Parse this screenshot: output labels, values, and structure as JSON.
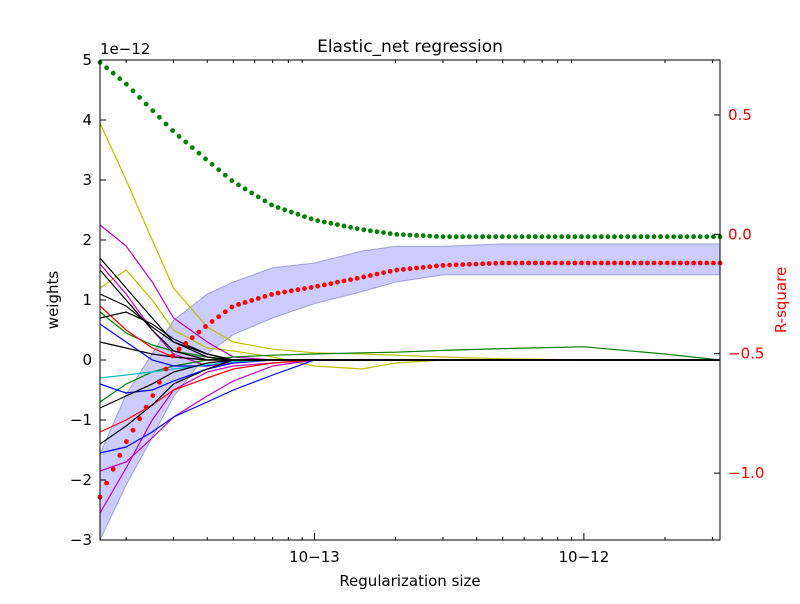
{
  "chart_data": {
    "type": "line",
    "title": "Elastic_net regression",
    "xlabel": "Regularization size",
    "ylabel": "weights",
    "y2label": "R-square",
    "y_offset_label": "1e−12",
    "x_scale": "log",
    "xlim": [
      1.6e-14,
      3.2e-12
    ],
    "ylim": [
      -3,
      5
    ],
    "y2lim": [
      -1.28,
      0.73
    ],
    "x_ticks": [
      {
        "value": 1e-13,
        "label": "10−13"
      },
      {
        "value": 1e-12,
        "label": "10−12"
      }
    ],
    "y_ticks": [
      {
        "value": 5,
        "label": "5"
      },
      {
        "value": 4,
        "label": "4"
      },
      {
        "value": 3,
        "label": "3"
      },
      {
        "value": 2,
        "label": "2"
      },
      {
        "value": 1,
        "label": "1"
      },
      {
        "value": 0,
        "label": "0"
      },
      {
        "value": -1,
        "label": "−1"
      },
      {
        "value": -2,
        "label": "−2"
      },
      {
        "value": -3,
        "label": "−3"
      }
    ],
    "y2_ticks": [
      {
        "value": 0.5,
        "label": "0.5"
      },
      {
        "value": 0.0,
        "label": "0.0"
      },
      {
        "value": -0.5,
        "label": "−0.5"
      },
      {
        "value": -1.0,
        "label": "−1.0"
      }
    ],
    "grid": false,
    "right_axis_color": "#ff0000",
    "band": {
      "color": "#8080ff",
      "opacity": 0.4,
      "x": [
        1.6e-14,
        2e-14,
        2.5e-14,
        3e-14,
        4e-14,
        5e-14,
        7e-14,
        1e-13,
        1.5e-13,
        2e-13,
        3e-13,
        5e-13,
        1e-12,
        2e-12,
        3.2e-12
      ],
      "y_upper": [
        -0.92,
        -0.67,
        -0.5,
        -0.36,
        -0.25,
        -0.2,
        -0.14,
        -0.12,
        -0.07,
        -0.05,
        -0.05,
        -0.04,
        -0.04,
        -0.04,
        -0.04
      ],
      "y_lower": [
        -1.28,
        -1.05,
        -0.85,
        -0.68,
        -0.5,
        -0.42,
        -0.35,
        -0.29,
        -0.24,
        -0.2,
        -0.17,
        -0.17,
        -0.17,
        -0.17,
        -0.17
      ]
    },
    "series": [
      {
        "color": "#ff0000",
        "marker": "dot",
        "axis": "right",
        "x": [
          1.6e-14,
          2e-14,
          2.5e-14,
          3e-14,
          4e-14,
          5e-14,
          7e-14,
          1e-13,
          1.5e-13,
          2e-13,
          3e-13,
          5e-13,
          1e-12,
          2e-12,
          3.2e-12
        ],
        "values": [
          -1.1,
          -0.87,
          -0.68,
          -0.5,
          -0.38,
          -0.3,
          -0.25,
          -0.22,
          -0.18,
          -0.15,
          -0.13,
          -0.12,
          -0.12,
          -0.12,
          -0.12
        ]
      },
      {
        "color": "#008000",
        "marker": "dot",
        "axis": "right",
        "x": [
          1.6e-14,
          2e-14,
          2.5e-14,
          3e-14,
          4e-14,
          5e-14,
          7e-14,
          1e-13,
          1.5e-13,
          2e-13,
          3e-13,
          5e-13,
          1e-12,
          2e-12,
          3.2e-12
        ],
        "values": [
          0.72,
          0.63,
          0.52,
          0.43,
          0.31,
          0.22,
          0.12,
          0.06,
          0.02,
          0.0,
          -0.01,
          -0.01,
          -0.01,
          -0.01,
          -0.01
        ]
      },
      {
        "color": "#bfbf00",
        "x": [
          1.6e-14,
          2e-14,
          2.5e-14,
          3e-14,
          4e-14,
          5e-14,
          7e-14,
          1e-13,
          1.5e-13,
          2e-13,
          3e-13,
          5e-13,
          1e-12,
          2e-12,
          3.2e-12
        ],
        "values": [
          3.95,
          3.0,
          2.0,
          1.2,
          0.55,
          0.3,
          0.18,
          0.12,
          0.1,
          0.08,
          0.05,
          0.02,
          0.0,
          0.0,
          0.0
        ]
      },
      {
        "color": "#bfbf00",
        "x": [
          1.6e-14,
          2e-14,
          2.5e-14,
          3e-14,
          4e-14,
          5e-14,
          7e-14,
          1e-13,
          1.5e-13,
          2e-13,
          3e-13,
          5e-13,
          1e-12,
          2e-12,
          3.2e-12
        ],
        "values": [
          1.2,
          1.5,
          1.0,
          0.5,
          0.2,
          0.15,
          0.05,
          -0.1,
          -0.15,
          -0.05,
          0.0,
          0.0,
          0.0,
          0.0,
          0.0
        ]
      },
      {
        "color": "#bf00bf",
        "x": [
          1.6e-14,
          2e-14,
          2.5e-14,
          3e-14,
          4e-14,
          5e-14,
          7e-14,
          1e-13,
          1.5e-13,
          2e-13,
          3e-13,
          5e-13,
          1e-12,
          2e-12,
          3.2e-12
        ],
        "values": [
          2.25,
          1.9,
          1.3,
          0.7,
          0.3,
          0.05,
          0.0,
          0.0,
          0.0,
          0.0,
          0.0,
          0.0,
          0.0,
          0.0,
          0.0
        ]
      },
      {
        "color": "#bf00bf",
        "x": [
          1.6e-14,
          2e-14,
          2.5e-14,
          3e-14,
          4e-14,
          5e-14,
          7e-14,
          1e-13,
          1.5e-13,
          2e-13,
          3e-13,
          5e-13,
          1e-12,
          2e-12,
          3.2e-12
        ],
        "values": [
          1.6,
          1.1,
          0.5,
          0.1,
          -0.1,
          -0.05,
          0.0,
          0.0,
          0.0,
          0.0,
          0.0,
          0.0,
          0.0,
          0.0,
          0.0
        ]
      },
      {
        "color": "#bf00bf",
        "x": [
          1.6e-14,
          2e-14,
          2.5e-14,
          3e-14,
          4e-14,
          5e-14,
          7e-14,
          1e-13,
          1.5e-13,
          2e-13,
          3e-13,
          5e-13,
          1e-12,
          2e-12,
          3.2e-12
        ],
        "values": [
          -2.55,
          -1.8,
          -1.0,
          -0.5,
          -0.2,
          -0.1,
          -0.05,
          0.0,
          0.0,
          0.0,
          0.0,
          0.0,
          0.0,
          0.0,
          0.0
        ]
      },
      {
        "color": "#bf00bf",
        "x": [
          1.6e-14,
          2e-14,
          2.5e-14,
          3e-14,
          4e-14,
          5e-14,
          7e-14,
          1e-13,
          1.5e-13,
          2e-13,
          3e-13,
          5e-13,
          1e-12,
          2e-12,
          3.2e-12
        ],
        "values": [
          -1.85,
          -1.7,
          -1.3,
          -0.95,
          -0.6,
          -0.35,
          -0.1,
          0.0,
          0.0,
          0.0,
          0.0,
          0.0,
          0.0,
          0.0,
          0.0
        ]
      },
      {
        "color": "#008000",
        "x": [
          1.6e-14,
          2e-14,
          2.5e-14,
          3e-14,
          4e-14,
          5e-14,
          7e-14,
          1e-13,
          1.5e-13,
          2e-13,
          3e-13,
          5e-13,
          1e-12,
          2e-12,
          3.2e-12
        ],
        "values": [
          -0.7,
          -0.4,
          -0.2,
          -0.1,
          0.0,
          0.05,
          0.08,
          0.1,
          0.12,
          0.13,
          0.16,
          0.19,
          0.22,
          0.1,
          0.0
        ]
      },
      {
        "color": "#008000",
        "x": [
          1.6e-14,
          2e-14,
          2.5e-14,
          3e-14,
          4e-14,
          5e-14,
          7e-14,
          1e-13,
          1.5e-13,
          2e-13,
          3e-13,
          5e-13,
          1e-12,
          2e-12,
          3.2e-12
        ],
        "values": [
          0.8,
          0.45,
          0.25,
          0.15,
          0.05,
          0.0,
          0.0,
          0.0,
          0.0,
          0.0,
          0.0,
          0.0,
          0.0,
          0.0,
          0.0
        ]
      },
      {
        "color": "#0000ff",
        "x": [
          1.6e-14,
          2e-14,
          2.5e-14,
          3e-14,
          4e-14,
          5e-14,
          7e-14,
          1e-13,
          1.5e-13,
          2e-13,
          3e-13,
          5e-13,
          1e-12,
          2e-12,
          3.2e-12
        ],
        "values": [
          -1.55,
          -1.45,
          -1.2,
          -0.95,
          -0.7,
          -0.5,
          -0.25,
          0.0,
          0.0,
          0.0,
          0.0,
          0.0,
          0.0,
          0.0,
          0.0
        ]
      },
      {
        "color": "#0000ff",
        "x": [
          1.6e-14,
          2e-14,
          2.5e-14,
          3e-14,
          4e-14,
          5e-14,
          7e-14,
          1e-13,
          1.5e-13,
          2e-13,
          3e-13,
          5e-13,
          1e-12,
          2e-12,
          3.2e-12
        ],
        "values": [
          -0.4,
          -0.55,
          -0.5,
          -0.35,
          -0.15,
          -0.05,
          0.0,
          0.0,
          0.0,
          0.0,
          0.0,
          0.0,
          0.0,
          0.0,
          0.0
        ]
      },
      {
        "color": "#0000ff",
        "x": [
          1.6e-14,
          2e-14,
          2.5e-14,
          3e-14,
          4e-14,
          5e-14,
          7e-14,
          1e-13,
          1.5e-13,
          2e-13,
          3e-13,
          5e-13,
          1e-12,
          2e-12,
          3.2e-12
        ],
        "values": [
          0.6,
          0.3,
          0.0,
          -0.1,
          -0.1,
          0.0,
          0.0,
          0.0,
          0.0,
          0.0,
          0.0,
          0.0,
          0.0,
          0.0,
          0.0
        ]
      },
      {
        "color": "#00bfbf",
        "x": [
          1.6e-14,
          2e-14,
          2.5e-14,
          3e-14,
          4e-14,
          5e-14,
          7e-14,
          1e-13,
          1.5e-13,
          2e-13,
          3e-13,
          5e-13,
          1e-12,
          2e-12,
          3.2e-12
        ],
        "values": [
          -0.3,
          -0.25,
          -0.2,
          -0.15,
          -0.08,
          -0.03,
          0.0,
          0.0,
          0.0,
          0.0,
          0.0,
          0.0,
          0.0,
          0.0,
          0.0
        ]
      },
      {
        "color": "#ff0000",
        "x": [
          1.6e-14,
          2e-14,
          2.5e-14,
          3e-14,
          4e-14,
          5e-14,
          7e-14,
          1e-13,
          1.5e-13,
          2e-13,
          3e-13,
          5e-13,
          1e-12,
          2e-12,
          3.2e-12
        ],
        "values": [
          0.9,
          0.5,
          0.2,
          0.05,
          0.0,
          0.0,
          0.0,
          0.0,
          0.0,
          0.0,
          0.0,
          0.0,
          0.0,
          0.0,
          0.0
        ]
      },
      {
        "color": "#ff0000",
        "x": [
          1.6e-14,
          2e-14,
          2.5e-14,
          3e-14,
          4e-14,
          5e-14,
          7e-14,
          1e-13,
          1.5e-13,
          2e-13,
          3e-13,
          5e-13,
          1e-12,
          2e-12,
          3.2e-12
        ],
        "values": [
          -1.2,
          -1.0,
          -0.75,
          -0.5,
          -0.3,
          -0.15,
          -0.05,
          0.0,
          0.0,
          0.0,
          0.0,
          0.0,
          0.0,
          0.0,
          0.0
        ]
      },
      {
        "color": "#000000",
        "x": [
          1.6e-14,
          2e-14,
          2.5e-14,
          3e-14,
          4e-14,
          5e-14,
          7e-14,
          1e-13,
          1.5e-13,
          2e-13,
          3e-13,
          5e-13,
          1e-12,
          2e-12,
          3.2e-12
        ],
        "values": [
          1.7,
          1.2,
          0.7,
          0.3,
          0.05,
          0.0,
          0.0,
          0.0,
          0.0,
          0.0,
          0.0,
          0.0,
          0.0,
          0.0,
          0.0
        ]
      },
      {
        "color": "#000000",
        "x": [
          1.6e-14,
          2e-14,
          2.5e-14,
          3e-14,
          4e-14,
          5e-14,
          7e-14,
          1e-13,
          1.5e-13,
          2e-13,
          3e-13,
          5e-13,
          1e-12,
          2e-12,
          3.2e-12
        ],
        "values": [
          1.5,
          1.0,
          0.5,
          0.15,
          0.0,
          0.0,
          0.0,
          0.0,
          0.0,
          0.0,
          0.0,
          0.0,
          0.0,
          0.0,
          0.0
        ]
      },
      {
        "color": "#000000",
        "x": [
          1.6e-14,
          2e-14,
          2.5e-14,
          3e-14,
          4e-14,
          5e-14,
          7e-14,
          1e-13,
          1.5e-13,
          2e-13,
          3e-13,
          5e-13,
          1e-12,
          2e-12,
          3.2e-12
        ],
        "values": [
          1.1,
          0.9,
          0.55,
          0.3,
          0.1,
          0.0,
          0.0,
          0.0,
          0.0,
          0.0,
          0.0,
          0.0,
          0.0,
          0.0,
          0.0
        ]
      },
      {
        "color": "#000000",
        "x": [
          1.6e-14,
          2e-14,
          2.5e-14,
          3e-14,
          4e-14,
          5e-14,
          7e-14,
          1e-13,
          1.5e-13,
          2e-13,
          3e-13,
          5e-13,
          1e-12,
          2e-12,
          3.2e-12
        ],
        "values": [
          0.7,
          0.8,
          0.6,
          0.35,
          0.1,
          0.0,
          0.0,
          0.0,
          0.0,
          0.0,
          0.0,
          0.0,
          0.0,
          0.0,
          0.0
        ]
      },
      {
        "color": "#000000",
        "x": [
          1.6e-14,
          2e-14,
          2.5e-14,
          3e-14,
          4e-14,
          5e-14,
          7e-14,
          1e-13,
          1.5e-13,
          2e-13,
          3e-13,
          5e-13,
          1e-12,
          2e-12,
          3.2e-12
        ],
        "values": [
          -0.8,
          -0.6,
          -0.4,
          -0.2,
          -0.05,
          0.0,
          0.0,
          0.0,
          0.0,
          0.0,
          0.0,
          0.0,
          0.0,
          0.0,
          0.0
        ]
      },
      {
        "color": "#000000",
        "x": [
          1.6e-14,
          2e-14,
          2.5e-14,
          3e-14,
          4e-14,
          5e-14,
          7e-14,
          1e-13,
          1.5e-13,
          2e-13,
          3e-13,
          5e-13,
          1e-12,
          2e-12,
          3.2e-12
        ],
        "values": [
          -1.4,
          -1.1,
          -0.75,
          -0.4,
          -0.15,
          0.0,
          0.0,
          0.0,
          0.0,
          0.0,
          0.0,
          0.0,
          0.0,
          0.0,
          0.0
        ]
      },
      {
        "color": "#000000",
        "x": [
          1.6e-14,
          2e-14,
          2.5e-14,
          3e-14,
          4e-14,
          5e-14,
          7e-14,
          1e-13,
          1.5e-13,
          2e-13,
          3e-13,
          5e-13,
          1e-12,
          2e-12,
          3.2e-12
        ],
        "values": [
          0.3,
          0.2,
          0.1,
          0.05,
          0.0,
          0.0,
          0.0,
          0.0,
          0.0,
          0.0,
          0.0,
          0.0,
          0.0,
          0.0,
          0.0
        ]
      }
    ]
  }
}
